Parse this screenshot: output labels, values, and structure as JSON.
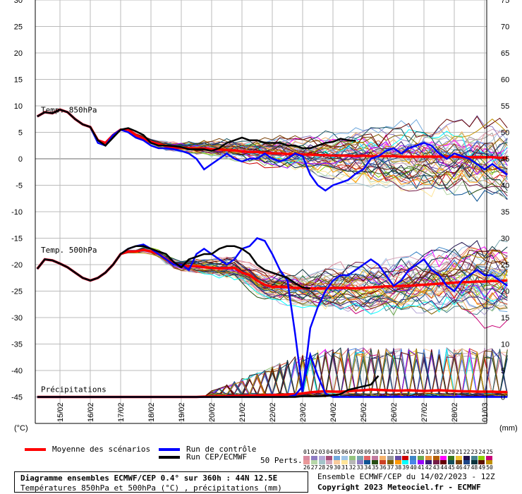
{
  "chart_data": {
    "type": "line",
    "title": "Diagramme ensembles ECMWF/CEP 0.4° sur 360h : 44N 12.5E",
    "subtitle": "Températures 850hPa et 500hPa (°C) , précipitations (mm)",
    "xlabel": "",
    "ylabel_left": "(°C)",
    "ylabel_right": "(mm)",
    "ylim": [
      -50,
      30
    ],
    "y2lim": [
      0,
      75
    ],
    "grid": true,
    "x_tick_labels": [
      "15/02",
      "16/02",
      "17/02",
      "18/02",
      "19/02",
      "20/02",
      "21/02",
      "22/02",
      "23/02",
      "24/02",
      "25/02",
      "26/02",
      "27/02",
      "28/02",
      "01/03"
    ],
    "y_tick_labels_left": [
      "30",
      "25",
      "20",
      "15",
      "10",
      "5",
      "0",
      "-5",
      "-10",
      "-15",
      "-20",
      "-25",
      "-30",
      "-35",
      "-40",
      "-45"
    ],
    "y_tick_labels_right": [
      "75",
      "70",
      "65",
      "60",
      "55",
      "50",
      "45",
      "40",
      "35",
      "30",
      "25",
      "20",
      "15",
      "10",
      "5",
      "0"
    ],
    "annotations": {
      "t850": "Temp. 850hPa",
      "t500": "Temp. 500hPa",
      "precip": "Précipitations"
    },
    "x_days": [
      -0.75,
      -0.5,
      -0.25,
      0,
      0.25,
      0.5,
      0.75,
      1,
      1.25,
      1.5,
      1.75,
      2,
      2.25,
      2.5,
      2.75,
      3,
      3.25,
      3.5,
      3.75,
      4,
      4.25,
      4.5,
      4.75,
      5,
      5.25,
      5.5,
      5.75,
      6,
      6.25,
      6.5,
      6.75,
      7,
      7.25,
      7.5,
      7.75,
      8,
      8.25,
      8.5,
      8.75,
      9,
      9.25,
      9.5,
      9.75,
      10,
      10.25,
      10.5,
      10.75,
      11,
      11.25,
      11.5,
      11.75,
      12,
      12.25,
      12.5,
      12.75,
      13,
      13.25,
      13.5,
      13.75,
      14,
      14.25,
      14.5,
      14.75
    ],
    "series": [
      {
        "name": "Moyenne des scénarios",
        "color": "#ff0000",
        "t850": [
          8,
          8.8,
          8.6,
          9.3,
          8.8,
          7.5,
          6.5,
          6,
          3.5,
          3,
          4.5,
          5.5,
          5.5,
          4.5,
          3.8,
          3.2,
          2.8,
          2.4,
          2.2,
          2.1,
          2,
          1.9,
          2,
          1.8,
          1.8,
          1.6,
          1.6,
          1.4,
          1.3,
          1.3,
          1.1,
          1,
          1,
          0.9,
          0.9,
          0.8,
          0.8,
          0.7,
          0.7,
          0.6,
          0.6,
          0.6,
          0.5,
          0.6,
          0.5,
          0.5,
          0.5,
          0.5,
          0.4,
          0.4,
          0.4,
          0.4,
          0.4,
          0.4,
          0.4,
          0.4,
          0.3,
          0.3,
          0.3,
          0.3,
          0.3,
          0.2,
          0.2
        ],
        "t500": [
          -20.8,
          -19,
          -19.2,
          -19.8,
          -20.5,
          -21.5,
          -22.5,
          -23,
          -22.5,
          -21.5,
          -20,
          -18,
          -17.5,
          -17.5,
          -17.2,
          -17.5,
          -18,
          -19,
          -19.8,
          -20.2,
          -20.3,
          -20.3,
          -20.5,
          -20.6,
          -20.7,
          -20.6,
          -20.6,
          -21.5,
          -22,
          -23,
          -23.8,
          -24.2,
          -24.2,
          -24.3,
          -24.4,
          -24.4,
          -24.5,
          -24.5,
          -24.5,
          -24.4,
          -24.4,
          -24.4,
          -24.5,
          -24.4,
          -24.3,
          -24.2,
          -24.1,
          -24.1,
          -24,
          -24,
          -23.9,
          -23.8,
          -23.7,
          -23.6,
          -23.5,
          -23.4,
          -23.3,
          -23.3,
          -23.2,
          -23.2,
          -23.1,
          -23.1,
          -23
        ],
        "precip": [
          0,
          0,
          0,
          0,
          0,
          0,
          0,
          0,
          0,
          0,
          0,
          0,
          0,
          0,
          0,
          0,
          0,
          0,
          0,
          0,
          0,
          0,
          0.1,
          0.1,
          0.2,
          0.2,
          0.3,
          0.3,
          0.4,
          0.4,
          0.5,
          0.5,
          0.6,
          0.7,
          0.8,
          1,
          1.3,
          1.5,
          1.6,
          1.5,
          1.5,
          1.6,
          1.8,
          1.9,
          2.1,
          2,
          1.9,
          1.8,
          1.8,
          1.9,
          1.8,
          1.7,
          1.8,
          1.9,
          1.8,
          1.7,
          1.6,
          1.6,
          1.5,
          1.5,
          1.5,
          1.4,
          1.4
        ]
      },
      {
        "name": "Run de contrôle",
        "color": "#0000ff",
        "t850": [
          8,
          8.8,
          8.6,
          9.3,
          8.8,
          7.5,
          6.5,
          6,
          3,
          2.5,
          4.5,
          5.5,
          5,
          4,
          3.5,
          2.5,
          2,
          2,
          1.8,
          1.5,
          1,
          0,
          -2,
          -1,
          0,
          1,
          0,
          -0.5,
          0,
          0,
          1,
          0,
          -0.5,
          0,
          1,
          0.5,
          -3,
          -5,
          -6,
          -5,
          -4.5,
          -4,
          -2.8,
          -2,
          0,
          0.5,
          1.5,
          2,
          1,
          2,
          2.5,
          3,
          2.5,
          1,
          0,
          1,
          0.5,
          0,
          -1,
          -2,
          -1,
          -2,
          -3
        ],
        "t500": [
          -20.8,
          -19,
          -19.2,
          -19.8,
          -20.5,
          -21.5,
          -22.5,
          -23,
          -22.5,
          -21.5,
          -20,
          -18,
          -17,
          -16.5,
          -16.2,
          -17,
          -18,
          -19,
          -20,
          -20,
          -21,
          -18,
          -17,
          -18,
          -19,
          -20,
          -19,
          -17,
          -16.5,
          -15,
          -15.5,
          -18,
          -21,
          -23,
          -33,
          -44,
          -32,
          -28,
          -25,
          -23,
          -22,
          -22,
          -21,
          -20,
          -19,
          -20,
          -22,
          -24,
          -23,
          -21,
          -20,
          -19,
          -21,
          -22,
          -24,
          -25,
          -23,
          -22,
          -21,
          -22,
          -22,
          -23,
          -24
        ],
        "precip": [
          0,
          0,
          0,
          0,
          0,
          0,
          0,
          0,
          0,
          0,
          0,
          0,
          0,
          0,
          0,
          0,
          0,
          0,
          0,
          0,
          0,
          0,
          0,
          0,
          0,
          0,
          0,
          0,
          0,
          0,
          0,
          0,
          0,
          0,
          0.5,
          3,
          12,
          6,
          1,
          0,
          0,
          0,
          0,
          0,
          0,
          0,
          0,
          0,
          0,
          0,
          0,
          0,
          0,
          0,
          0,
          0,
          0,
          0,
          0,
          0,
          0,
          0,
          0
        ]
      },
      {
        "name": "Run CEP/ECMWF",
        "color": "#000000",
        "t850": [
          8,
          8.8,
          8.6,
          9.3,
          8.8,
          7.5,
          6.5,
          6,
          3.5,
          2.5,
          4,
          5.5,
          5.8,
          5.2,
          4.5,
          3,
          2.5,
          2.5,
          2.4,
          2.2,
          1.8,
          1.8,
          1.8,
          1.5,
          2,
          3,
          3.5,
          4,
          3.5,
          3.5,
          3,
          3,
          3,
          2.5,
          2.5,
          2,
          2,
          2.5,
          3,
          3.2,
          3.8,
          3.5,
          3.4
        ],
        "t500": [
          -20.8,
          -19,
          -19.2,
          -19.8,
          -20.5,
          -21.5,
          -22.5,
          -23,
          -22.5,
          -21.5,
          -20,
          -18,
          -17,
          -16.5,
          -16.5,
          -17,
          -17.5,
          -18,
          -19.5,
          -20.5,
          -19,
          -18.5,
          -18,
          -18,
          -17,
          -16.5,
          -16.5,
          -17,
          -18,
          -20,
          -21,
          -21.5,
          -22,
          -22.5,
          -23.5,
          -24.3,
          -24.5
        ],
        "precip": [
          0,
          0,
          0,
          0,
          0,
          0,
          0,
          0,
          0,
          0,
          0,
          0,
          0,
          0,
          0,
          0,
          0,
          0,
          0,
          0,
          0,
          0,
          0,
          0,
          0,
          0,
          0,
          0,
          0,
          0,
          0,
          0,
          0,
          0,
          0,
          0.2,
          0.2,
          0.2,
          0.3,
          0.5,
          0.8,
          2,
          2.5,
          3,
          3.5,
          6
        ]
      }
    ],
    "members": 50
  },
  "legend": {
    "mean": "Moyenne des scénarios",
    "control": "Run de contrôle",
    "cep": "Run CEP/ECMWF",
    "perts": "50 Perts."
  },
  "pert_labels_top": [
    "01",
    "02",
    "03",
    "04",
    "05",
    "06",
    "07",
    "08",
    "09",
    "10",
    "11",
    "12",
    "13",
    "14",
    "15",
    "16",
    "17",
    "18",
    "19",
    "20",
    "21",
    "22",
    "23",
    "24",
    "25"
  ],
  "pert_labels_bottom": [
    "26",
    "27",
    "28",
    "29",
    "30",
    "31",
    "32",
    "33",
    "34",
    "35",
    "36",
    "37",
    "38",
    "39",
    "40",
    "41",
    "42",
    "43",
    "44",
    "45",
    "46",
    "47",
    "48",
    "49",
    "50"
  ],
  "pert_colors": [
    "#d98aa0",
    "#8e7cc3",
    "#b4a7d6",
    "#a64d79",
    "#6fa8dc",
    "#9fc5e8",
    "#93c47d",
    "#76a5af",
    "#e06666",
    "#c27ba0",
    "#f6b26b",
    "#999999",
    "#674ea7",
    "#cc0000",
    "#3d85c6",
    "#6aa84f",
    "#e69138",
    "#b45f06",
    "#ff00ff",
    "#38761d",
    "#f1c232",
    "#20124d",
    "#45818e",
    "#8fce00",
    "#c90076",
    "#ea9999",
    "#b6d7a8",
    "#a2c4c9",
    "#d5a6bd",
    "#f9cb9c",
    "#ffe599",
    "#b7b7b7",
    "#8e7cc3",
    "#0b5394",
    "#274e13",
    "#cc4125",
    "#7f6000",
    "#ff9900",
    "#00ffff",
    "#4a86e8",
    "#9900ff",
    "#351c75",
    "#741b47",
    "#660000",
    "#134f5c",
    "#783f04",
    "#1c4587",
    "#0c343d",
    "#5b0f00",
    "#bf9000"
  ],
  "info": {
    "title": "Diagramme ensembles ECMWF/CEP 0.4° sur 360h : 44N 12.5E",
    "subtitle": "Températures 850hPa et 500hPa (°C) , précipitations (mm)",
    "run": "Ensemble ECMWF/CEP du 14/02/2023 - 12Z",
    "copyright": "Copyright 2023 Meteociel.fr - ECMWF"
  }
}
